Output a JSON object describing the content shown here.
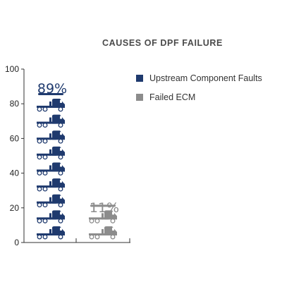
{
  "chart_data": {
    "type": "bar",
    "title": "CAUSES OF DPF FAILURE",
    "categories": [
      "Upstream Component Faults",
      "Failed ECM"
    ],
    "values": [
      89,
      11
    ],
    "value_labels": [
      "89%",
      "11%"
    ],
    "ylim": [
      0,
      100
    ],
    "y_ticks": [
      0,
      20,
      40,
      60,
      80,
      100
    ],
    "xlabel": "",
    "ylabel": "",
    "grid": false,
    "legend": "top-right",
    "mark": "stacked truck icons",
    "colors": [
      "#1f3a6e",
      "#8c8c8c"
    ]
  }
}
